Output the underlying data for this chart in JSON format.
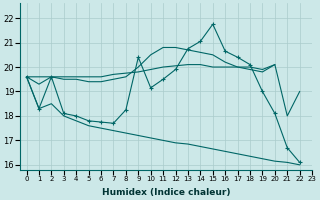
{
  "xlabel": "Humidex (Indice chaleur)",
  "background_color": "#cce8e8",
  "grid_color": "#aacccc",
  "line_color": "#006666",
  "xlim": [
    -0.5,
    23
  ],
  "ylim": [
    15.8,
    22.6
  ],
  "yticks": [
    16,
    17,
    18,
    19,
    20,
    21,
    22
  ],
  "xticks": [
    0,
    1,
    2,
    3,
    4,
    5,
    6,
    7,
    8,
    9,
    10,
    11,
    12,
    13,
    14,
    15,
    16,
    17,
    18,
    19,
    20,
    21,
    22,
    23
  ],
  "series": [
    {
      "x": [
        0,
        1,
        2,
        3,
        4,
        5,
        6,
        7,
        8,
        9,
        10,
        11,
        12,
        13,
        14,
        15,
        16,
        17,
        18,
        19,
        20,
        21,
        22
      ],
      "y": [
        19.6,
        18.3,
        19.6,
        18.1,
        18.0,
        17.8,
        17.75,
        17.7,
        18.25,
        20.4,
        19.15,
        19.5,
        19.9,
        20.75,
        21.05,
        21.75,
        20.65,
        20.4,
        20.1,
        19.0,
        18.1,
        16.7,
        16.1
      ],
      "has_markers": true
    },
    {
      "x": [
        0,
        1,
        2,
        3,
        4,
        5,
        6,
        7,
        8,
        9,
        10,
        11,
        12,
        13,
        14,
        15,
        16,
        17,
        18,
        19,
        20
      ],
      "y": [
        19.6,
        19.6,
        19.6,
        19.6,
        19.6,
        19.6,
        19.6,
        19.7,
        19.75,
        19.8,
        19.9,
        20.0,
        20.05,
        20.1,
        20.1,
        20.0,
        20.0,
        20.0,
        20.0,
        19.9,
        20.1
      ],
      "has_markers": false
    },
    {
      "x": [
        0,
        1,
        2,
        3,
        4,
        5,
        6,
        7,
        8,
        9,
        10,
        11,
        12,
        13,
        14,
        15,
        16,
        17,
        18,
        19,
        20,
        21,
        22
      ],
      "y": [
        19.6,
        19.3,
        19.6,
        19.5,
        19.5,
        19.4,
        19.4,
        19.5,
        19.6,
        20.0,
        20.5,
        20.8,
        20.8,
        20.7,
        20.6,
        20.5,
        20.2,
        20.0,
        19.9,
        19.8,
        20.1,
        18.0,
        19.0
      ],
      "has_markers": false
    },
    {
      "x": [
        0,
        1,
        2,
        3,
        4,
        5,
        6,
        7,
        8,
        9,
        10,
        11,
        12,
        13,
        14,
        15,
        16,
        17,
        18,
        19,
        20,
        21,
        22
      ],
      "y": [
        19.6,
        18.3,
        18.5,
        18.0,
        17.8,
        17.6,
        17.5,
        17.4,
        17.3,
        17.2,
        17.1,
        17.0,
        16.9,
        16.85,
        16.75,
        16.65,
        16.55,
        16.45,
        16.35,
        16.25,
        16.15,
        16.1,
        16.0
      ],
      "has_markers": false
    }
  ]
}
